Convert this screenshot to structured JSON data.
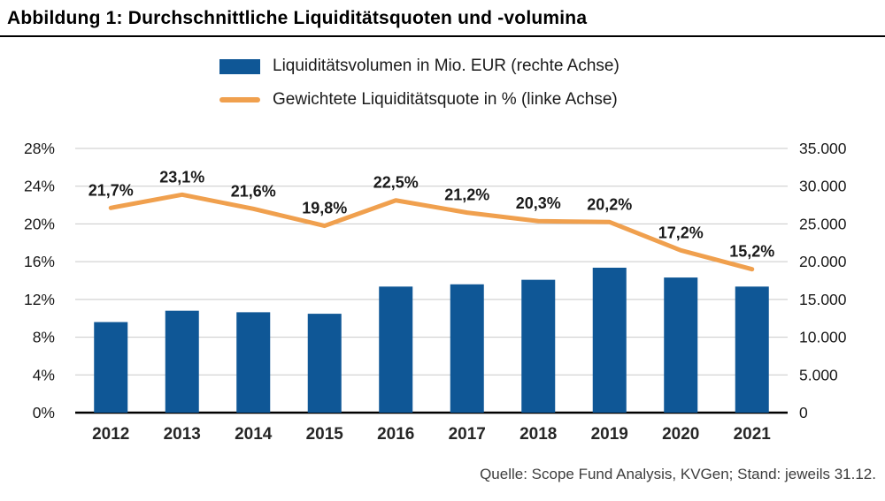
{
  "title": "Abbildung 1: Durchschnittliche Liquiditätsquoten und -volumina",
  "source": "Quelle: Scope Fund Analysis, KVGen; Stand: jeweils 31.12.",
  "legend": [
    {
      "label": "Liquiditätsvolumen in Mio. EUR (rechte Achse)",
      "marker": "bar-swatch",
      "color": "#0f5796"
    },
    {
      "label": "Gewichtete Liquiditätsquote in % (linke Achse)",
      "marker": "line-swatch",
      "color": "#f0a04e"
    }
  ],
  "chart_data": {
    "type": "bar",
    "subtype": "combo-bar-line",
    "categories": [
      "2012",
      "2013",
      "2014",
      "2015",
      "2016",
      "2017",
      "2018",
      "2019",
      "2020",
      "2021"
    ],
    "series": [
      {
        "name": "Liquiditätsvolumen in Mio. EUR",
        "type": "bar",
        "axis": "right",
        "color": "#0f5796",
        "values": [
          12000,
          13500,
          13300,
          13100,
          16700,
          17000,
          17600,
          19200,
          17900,
          16700
        ]
      },
      {
        "name": "Gewichtete Liquiditätsquote in %",
        "type": "line",
        "axis": "left",
        "color": "#f0a04e",
        "values": [
          21.7,
          23.1,
          21.6,
          19.8,
          22.5,
          21.2,
          20.3,
          20.2,
          17.2,
          15.2
        ],
        "labels": [
          "21,7%",
          "23,1%",
          "21,6%",
          "19,8%",
          "22,5%",
          "21,2%",
          "20,3%",
          "20,2%",
          "17,2%",
          "15,2%"
        ]
      }
    ],
    "left_axis": {
      "min": 0,
      "max": 28,
      "step": 4,
      "tick_labels": [
        "0%",
        "4%",
        "8%",
        "12%",
        "16%",
        "20%",
        "24%",
        "28%"
      ]
    },
    "right_axis": {
      "min": 0,
      "max": 35000,
      "step": 5000,
      "tick_labels": [
        "0",
        "5.000",
        "10.000",
        "15.000",
        "20.000",
        "25.000",
        "30.000",
        "35.000"
      ]
    },
    "grid": true,
    "legend_position": "top",
    "gridline_color": "#c9c9c9",
    "baseline_color": "#000000",
    "data_label_color": "#1a1a1a",
    "axis_label_color": "#1a1a1a"
  }
}
